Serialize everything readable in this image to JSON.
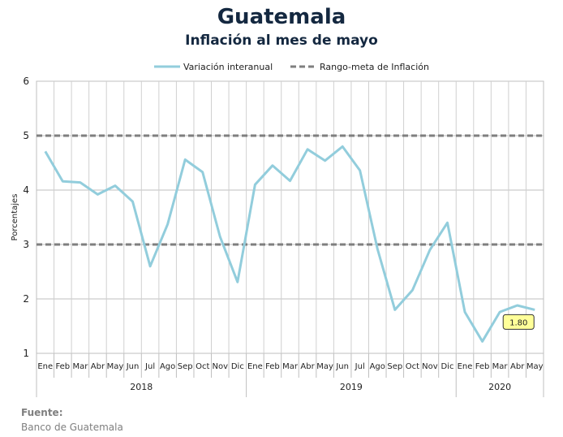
{
  "chart_data": {
    "type": "line",
    "title": "Guatemala",
    "subtitle": "Inflación al mes de mayo",
    "ylabel": "Porcentajes",
    "ylim": [
      1,
      6
    ],
    "yticks": [
      1,
      2,
      3,
      4,
      5,
      6
    ],
    "grid": true,
    "legend_position": "top",
    "categories": [
      "Ene",
      "Feb",
      "Mar",
      "Abr",
      "May",
      "Jun",
      "Jul",
      "Ago",
      "Sep",
      "Oct",
      "Nov",
      "Dic",
      "Ene",
      "Feb",
      "Mar",
      "Abr",
      "May",
      "Jun",
      "Jul",
      "Ago",
      "Sep",
      "Oct",
      "Nov",
      "Dic",
      "Ene",
      "Feb",
      "Mar",
      "Abr",
      "May"
    ],
    "year_groups": [
      {
        "label": "2018",
        "count": 12
      },
      {
        "label": "2019",
        "count": 12
      },
      {
        "label": "2020",
        "count": 5
      }
    ],
    "series": [
      {
        "name": "Variación interanual",
        "color": "#92cddc",
        "style": "solid",
        "values": [
          4.71,
          4.16,
          4.14,
          3.92,
          4.08,
          3.79,
          2.6,
          3.37,
          4.56,
          4.33,
          3.14,
          2.31,
          4.1,
          4.45,
          4.17,
          4.75,
          4.54,
          4.8,
          4.36,
          2.92,
          1.8,
          2.16,
          2.9,
          3.4,
          1.76,
          1.22,
          1.76,
          1.88,
          1.8
        ]
      },
      {
        "name": "Rango-meta de Inflación",
        "color": "#7f7f7f",
        "style": "dashed",
        "values_constant": [
          3,
          5
        ]
      }
    ],
    "annotation": {
      "category_index": 28,
      "text": "1.80",
      "background": "#ffff99"
    }
  },
  "source": {
    "label": "Fuente:",
    "text": "Banco de Guatemala"
  }
}
